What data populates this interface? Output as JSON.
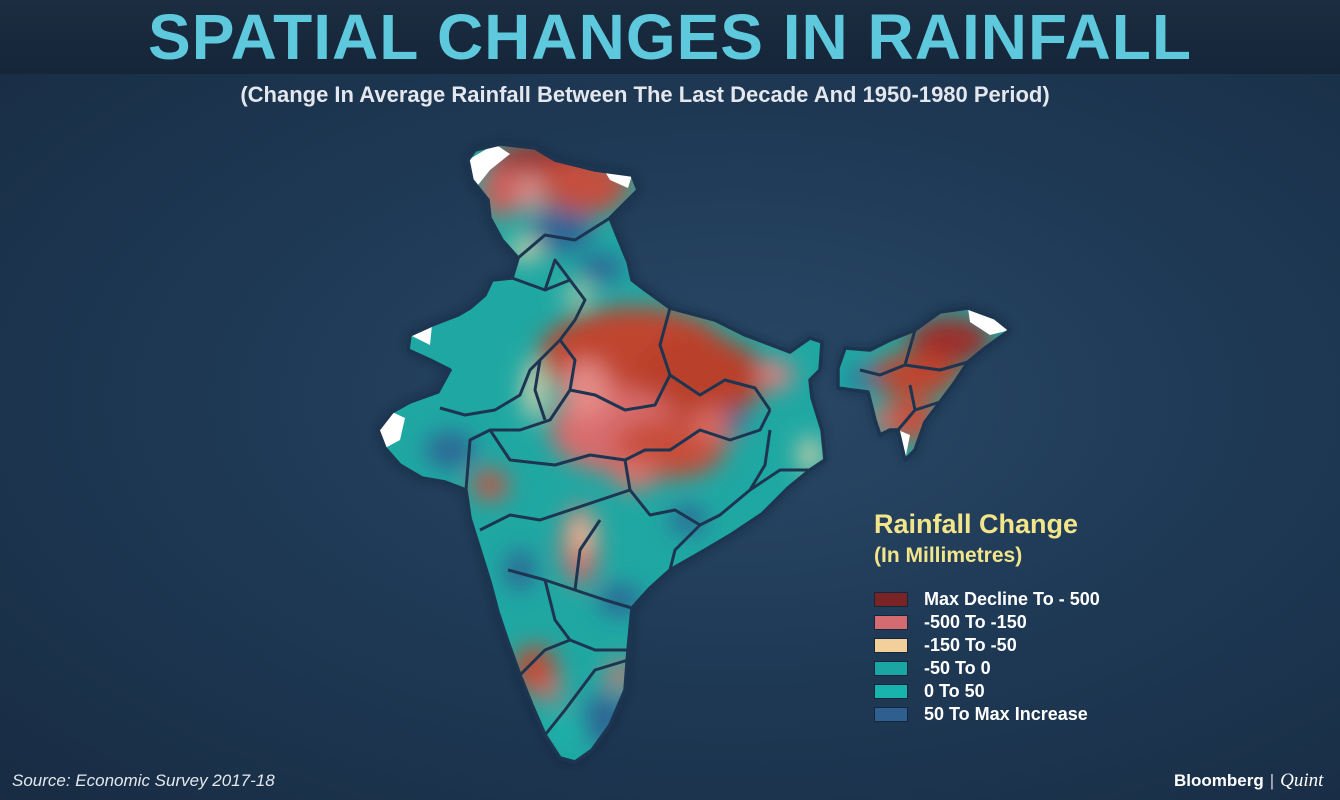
{
  "header": {
    "title": "SPATIAL CHANGES IN RAINFALL",
    "subtitle": "(Change In Average Rainfall Between The Last Decade And 1950-1980 Period)",
    "title_color": "#5ec8dc"
  },
  "map": {
    "subject": "India",
    "colors": {
      "background": "#1f3a56",
      "outline": "#1d3550",
      "max_decline": "#b0392a",
      "decline": "#d9736d",
      "light_decline": "#f0d2a8",
      "small_decline": "#1fa7a3",
      "small_increase": "#1fb6ae",
      "max_increase": "#3a6a9c",
      "no_data": "#ffffff"
    }
  },
  "legend": {
    "title": "Rainfall Change",
    "subtitle": "(In Millimetres)",
    "title_color": "#f2e58a",
    "items": [
      {
        "label": "Max Decline To - 500",
        "color": "#7a2326"
      },
      {
        "label": "-500 To -150",
        "color": "#d46b70"
      },
      {
        "label": "-150 To -50",
        "color": "#f3cf9b"
      },
      {
        "label": "-50 To 0",
        "color": "#1aa7a4"
      },
      {
        "label": "0 To 50",
        "color": "#18b3ad"
      },
      {
        "label": "50 To Max Increase",
        "color": "#2e5f8e"
      }
    ]
  },
  "footer": {
    "source": "Source: Economic Survey 2017-18",
    "brand_primary": "Bloomberg",
    "brand_separator": "|",
    "brand_secondary": "Quint"
  }
}
